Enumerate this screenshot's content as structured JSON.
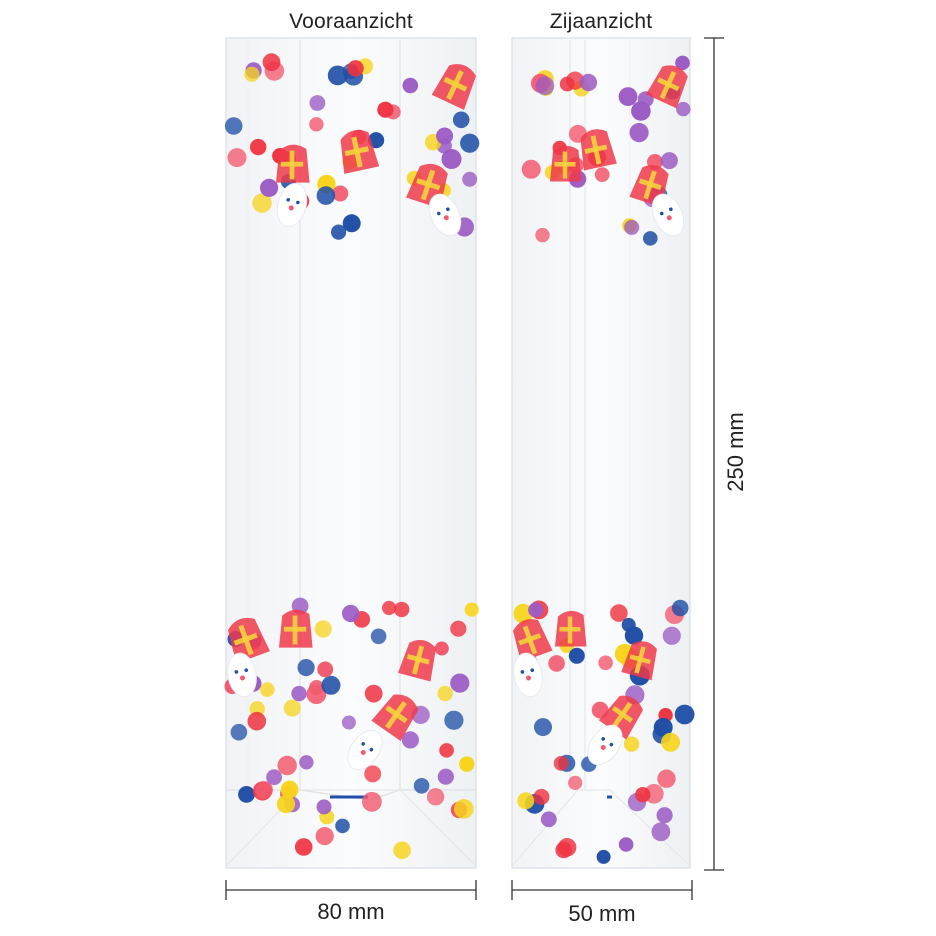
{
  "views": {
    "front": {
      "label": "Vooraanzicht",
      "width_label": "80 mm"
    },
    "side": {
      "label": "Zijaanzicht",
      "width_label": "50 mm"
    }
  },
  "height_label": "250 mm",
  "product": {
    "description_icons": [
      "confetti-dot",
      "mitre-icon",
      "sinterklaas-face-icon"
    ],
    "confetti_colors": [
      "#ef3340",
      "#f7d41c",
      "#1f4fa6",
      "#9b5bc4",
      "#f25a6f"
    ],
    "mitre_colors": {
      "body": "#ee3a4a",
      "cross": "#f4d33c",
      "trim": "#f08a9a"
    }
  },
  "colors": {
    "dimension_line": "#333333",
    "bag_outline": "#dfe3e8"
  }
}
